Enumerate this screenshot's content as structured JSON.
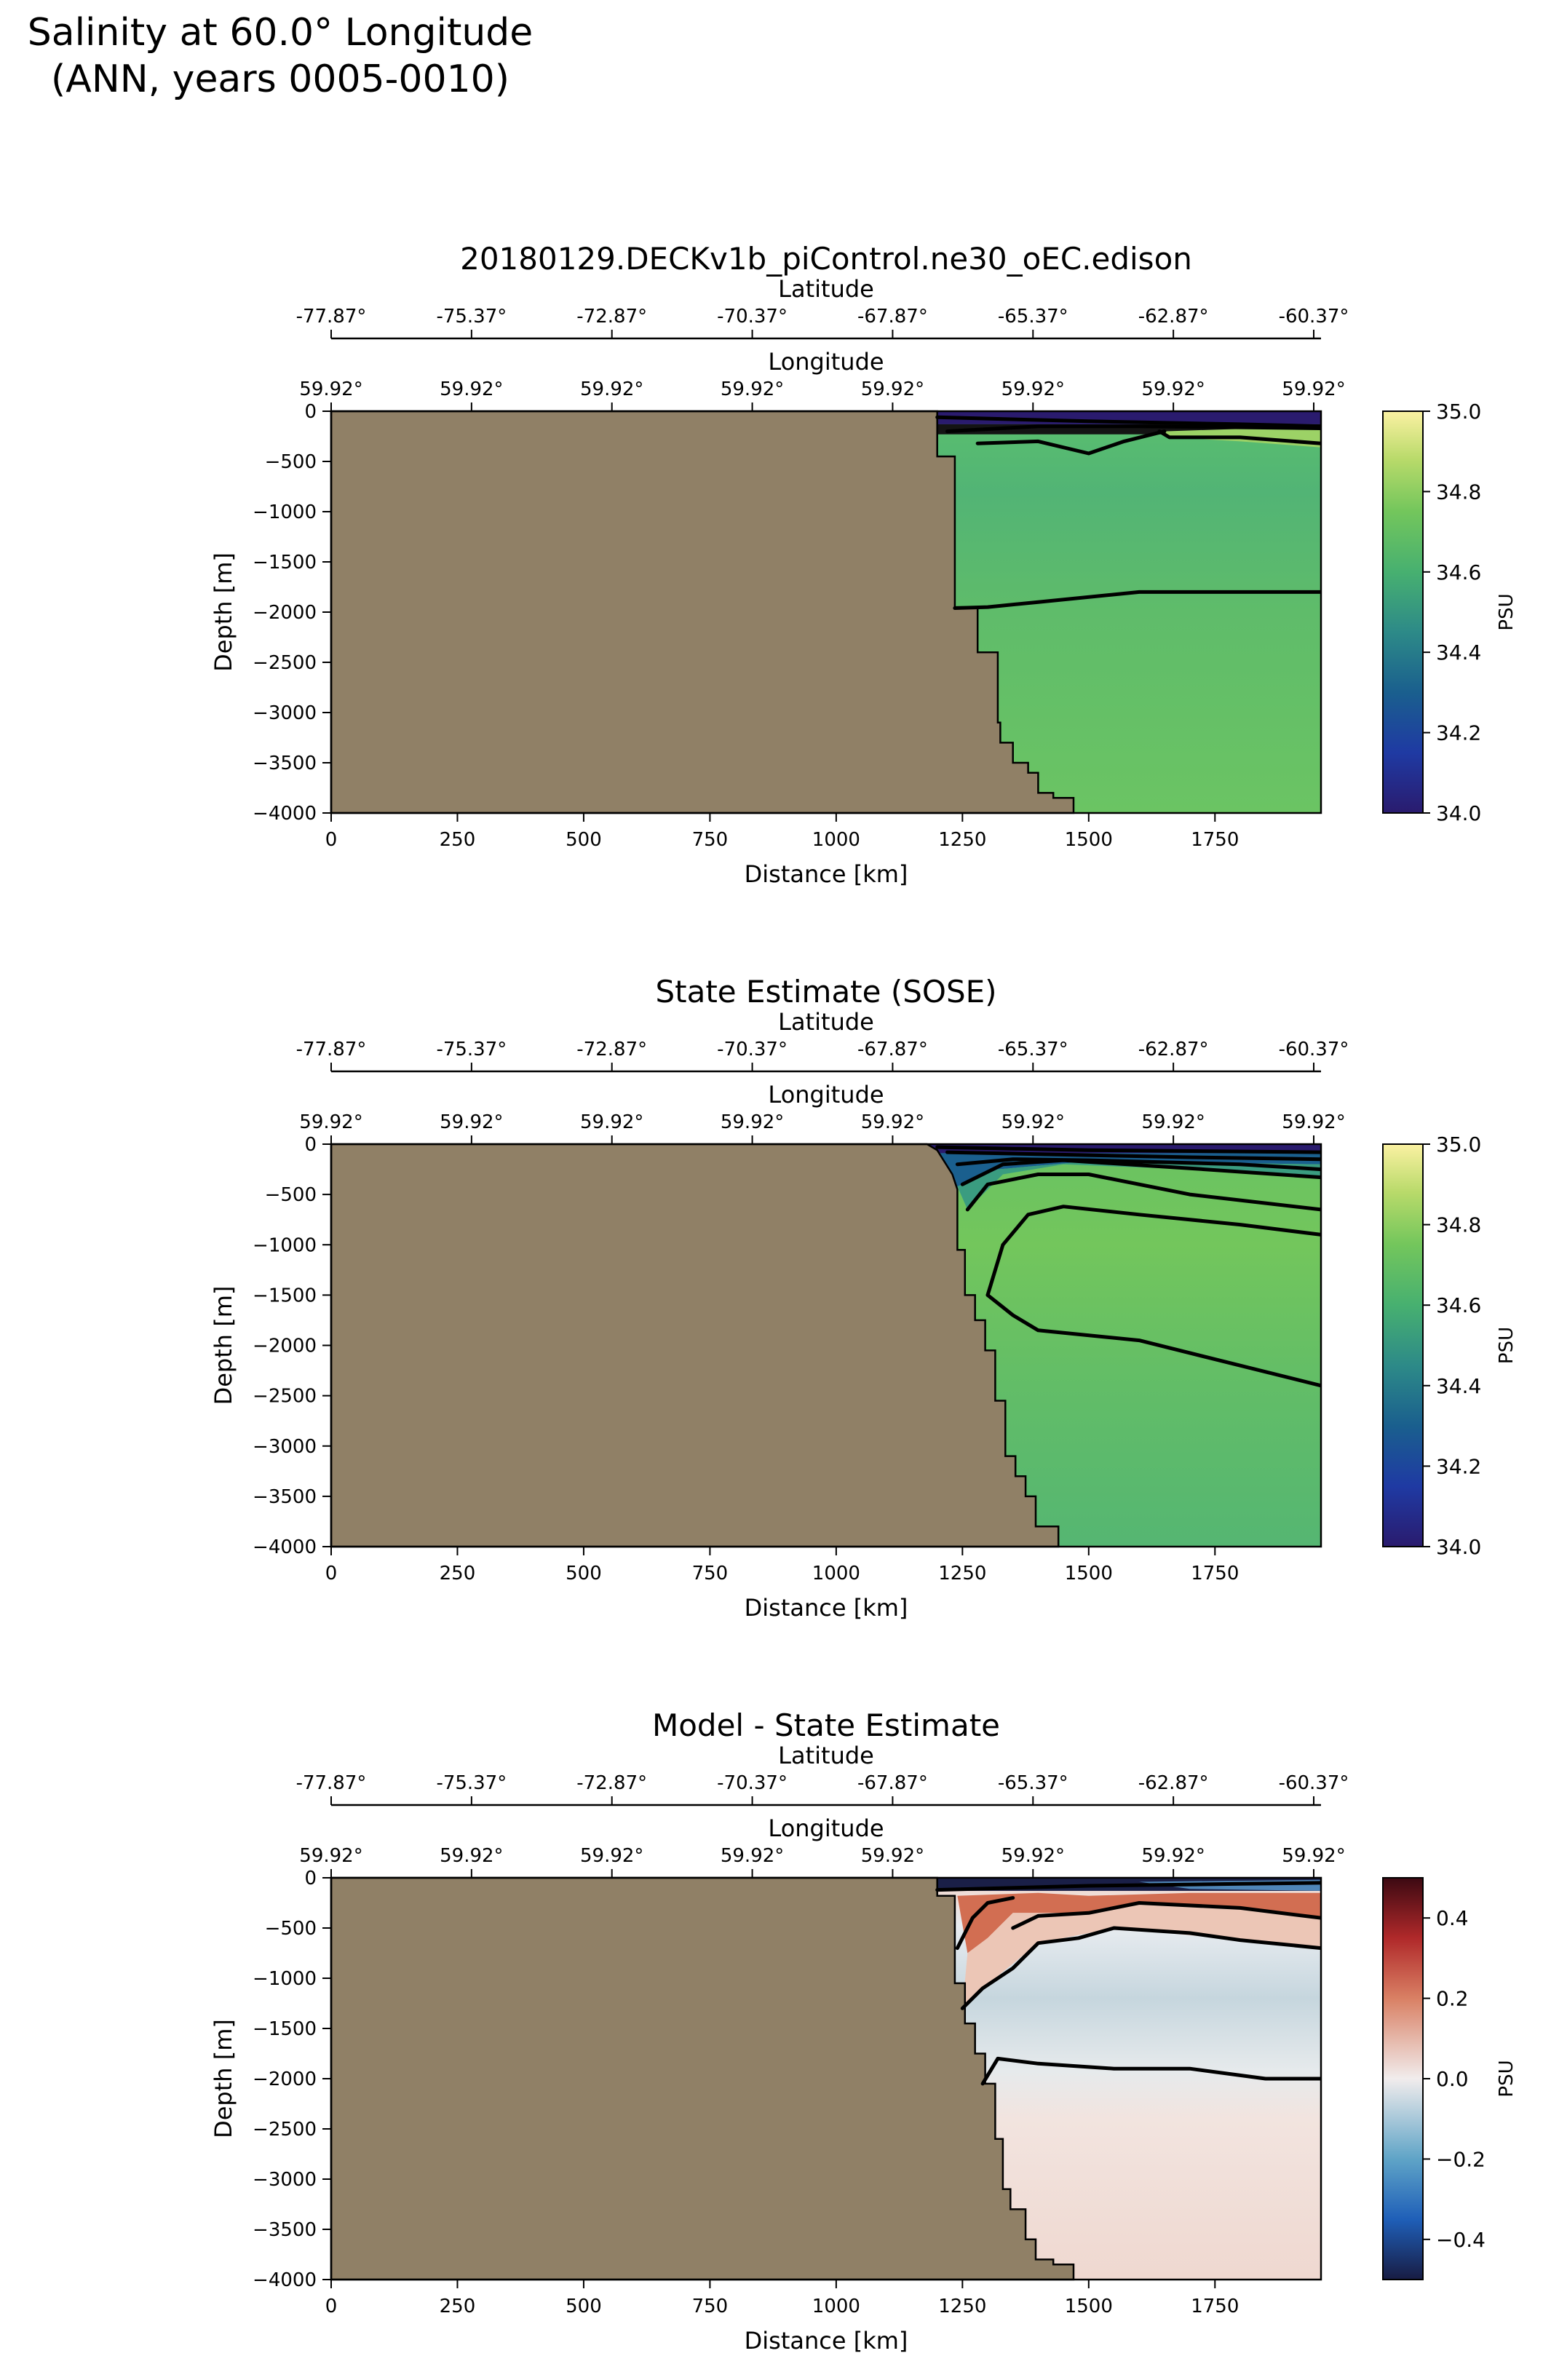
{
  "figure": {
    "suptitle_line1": "Salinity at 60.0° Longitude",
    "suptitle_line2": "(ANN, years 0005-0010)"
  },
  "colors": {
    "land": "#908066",
    "axis": "#000000"
  },
  "chart_data": [
    {
      "type": "heatmap",
      "title": "20180129.DECKv1b_piControl.ne30_oEC.edison",
      "xlabel": "Distance [km]",
      "ylabel": "Depth [m]",
      "xlim": [
        0,
        1960
      ],
      "ylim": [
        -4000,
        0
      ],
      "xticks": [
        0,
        250,
        500,
        750,
        1000,
        1250,
        1500,
        1750
      ],
      "yticks": [
        0,
        -500,
        -1000,
        -1500,
        -2000,
        -2500,
        -3000,
        -3500,
        -4000
      ],
      "lat_label": "Latitude",
      "lat_ticks": [
        "-77.87°",
        "-75.37°",
        "-72.87°",
        "-70.37°",
        "-67.87°",
        "-65.37°",
        "-62.87°",
        "-60.37°"
      ],
      "lon_label": "Longitude",
      "lon_ticks": [
        "59.92°",
        "59.92°",
        "59.92°",
        "59.92°",
        "59.92°",
        "59.92°",
        "59.92°",
        "59.92°"
      ],
      "colorbar": {
        "label": "PSU",
        "range": [
          34.0,
          35.0
        ],
        "ticks": [
          "35.0",
          "34.8",
          "34.6",
          "34.4",
          "34.2",
          "34.0"
        ],
        "colormap": "haline"
      },
      "land_boundary": [
        [
          1200,
          0
        ],
        [
          1200,
          -450
        ],
        [
          1235,
          -450
        ],
        [
          1235,
          -1950
        ],
        [
          1280,
          -1950
        ],
        [
          1280,
          -2400
        ],
        [
          1320,
          -2400
        ],
        [
          1320,
          -3100
        ],
        [
          1325,
          -3100
        ],
        [
          1325,
          -3300
        ],
        [
          1350,
          -3300
        ],
        [
          1350,
          -3500
        ],
        [
          1380,
          -3500
        ],
        [
          1380,
          -3600
        ],
        [
          1400,
          -3600
        ],
        [
          1400,
          -3800
        ],
        [
          1430,
          -3800
        ],
        [
          1430,
          -3850
        ],
        [
          1470,
          -3850
        ],
        [
          1470,
          -4000
        ]
      ],
      "contours": [
        [
          [
            1200,
            -60
          ],
          [
            1500,
            -100
          ],
          [
            1800,
            -130
          ],
          [
            1960,
            -150
          ]
        ],
        [
          [
            1220,
            -200
          ],
          [
            1400,
            -150
          ],
          [
            1600,
            -150
          ],
          [
            1800,
            -160
          ],
          [
            1960,
            -170
          ]
        ],
        [
          [
            1280,
            -320
          ],
          [
            1400,
            -300
          ],
          [
            1500,
            -420
          ],
          [
            1570,
            -300
          ],
          [
            1650,
            -200
          ]
        ],
        [
          [
            1640,
            -200
          ],
          [
            1660,
            -260
          ],
          [
            1800,
            -260
          ],
          [
            1960,
            -320
          ]
        ],
        [
          [
            1235,
            -1960
          ],
          [
            1300,
            -1950
          ],
          [
            1400,
            -1900
          ],
          [
            1600,
            -1800
          ],
          [
            1800,
            -1800
          ],
          [
            1960,
            -1800
          ]
        ]
      ]
    },
    {
      "type": "heatmap",
      "title": "State Estimate (SOSE)",
      "xlabel": "Distance [km]",
      "ylabel": "Depth [m]",
      "xlim": [
        0,
        1960
      ],
      "ylim": [
        -4000,
        0
      ],
      "xticks": [
        0,
        250,
        500,
        750,
        1000,
        1250,
        1500,
        1750
      ],
      "yticks": [
        0,
        -500,
        -1000,
        -1500,
        -2000,
        -2500,
        -3000,
        -3500,
        -4000
      ],
      "lat_label": "Latitude",
      "lat_ticks": [
        "-77.87°",
        "-75.37°",
        "-72.87°",
        "-70.37°",
        "-67.87°",
        "-65.37°",
        "-62.87°",
        "-60.37°"
      ],
      "lon_label": "Longitude",
      "lon_ticks": [
        "59.92°",
        "59.92°",
        "59.92°",
        "59.92°",
        "59.92°",
        "59.92°",
        "59.92°",
        "59.92°"
      ],
      "colorbar": {
        "label": "PSU",
        "range": [
          34.0,
          35.0
        ],
        "ticks": [
          "35.0",
          "34.8",
          "34.6",
          "34.4",
          "34.2",
          "34.0"
        ],
        "colormap": "haline"
      },
      "land_boundary": [
        [
          1180,
          0
        ],
        [
          1200,
          -60
        ],
        [
          1230,
          -300
        ],
        [
          1240,
          -450
        ],
        [
          1240,
          -1050
        ],
        [
          1255,
          -1050
        ],
        [
          1255,
          -1500
        ],
        [
          1275,
          -1500
        ],
        [
          1275,
          -1750
        ],
        [
          1295,
          -1750
        ],
        [
          1295,
          -2050
        ],
        [
          1315,
          -2050
        ],
        [
          1315,
          -2550
        ],
        [
          1335,
          -2550
        ],
        [
          1335,
          -3100
        ],
        [
          1355,
          -3100
        ],
        [
          1355,
          -3300
        ],
        [
          1375,
          -3300
        ],
        [
          1375,
          -3500
        ],
        [
          1395,
          -3500
        ],
        [
          1395,
          -3800
        ],
        [
          1440,
          -3800
        ],
        [
          1440,
          -4000
        ]
      ],
      "contours": [
        [
          [
            1200,
            -30
          ],
          [
            1500,
            -60
          ],
          [
            1960,
            -80
          ]
        ],
        [
          [
            1220,
            -80
          ],
          [
            1400,
            -100
          ],
          [
            1700,
            -130
          ],
          [
            1960,
            -150
          ]
        ],
        [
          [
            1240,
            -200
          ],
          [
            1350,
            -150
          ],
          [
            1500,
            -160
          ],
          [
            1800,
            -200
          ],
          [
            1960,
            -250
          ]
        ],
        [
          [
            1250,
            -400
          ],
          [
            1330,
            -200
          ],
          [
            1450,
            -160
          ],
          [
            1700,
            -240
          ],
          [
            1960,
            -330
          ]
        ],
        [
          [
            1260,
            -650
          ],
          [
            1300,
            -400
          ],
          [
            1400,
            -300
          ],
          [
            1500,
            -300
          ],
          [
            1700,
            -500
          ],
          [
            1960,
            -650
          ]
        ],
        [
          [
            1300,
            -1500
          ],
          [
            1330,
            -1000
          ],
          [
            1380,
            -700
          ],
          [
            1450,
            -620
          ],
          [
            1600,
            -700
          ],
          [
            1800,
            -800
          ],
          [
            1960,
            -900
          ]
        ],
        [
          [
            1300,
            -1500
          ],
          [
            1350,
            -1700
          ],
          [
            1400,
            -1850
          ],
          [
            1600,
            -1950
          ],
          [
            1800,
            -2200
          ],
          [
            1960,
            -2400
          ]
        ]
      ]
    },
    {
      "type": "heatmap",
      "title": "Model - State Estimate",
      "xlabel": "Distance [km]",
      "ylabel": "Depth [m]",
      "xlim": [
        0,
        1960
      ],
      "ylim": [
        -4000,
        0
      ],
      "xticks": [
        0,
        250,
        500,
        750,
        1000,
        1250,
        1500,
        1750
      ],
      "yticks": [
        0,
        -500,
        -1000,
        -1500,
        -2000,
        -2500,
        -3000,
        -3500,
        -4000
      ],
      "lat_label": "Latitude",
      "lat_ticks": [
        "-77.87°",
        "-75.37°",
        "-72.87°",
        "-70.37°",
        "-67.87°",
        "-65.37°",
        "-62.87°",
        "-60.37°"
      ],
      "lon_label": "Longitude",
      "lon_ticks": [
        "59.92°",
        "59.92°",
        "59.92°",
        "59.92°",
        "59.92°",
        "59.92°",
        "59.92°",
        "59.92°"
      ],
      "colorbar": {
        "label": "PSU",
        "range": [
          -0.5,
          0.5
        ],
        "ticks": [
          "0.4",
          "0.2",
          "0.0",
          "−0.2",
          "−0.4"
        ],
        "colormap": "balance"
      },
      "land_boundary": [
        [
          1200,
          0
        ],
        [
          1200,
          -180
        ],
        [
          1235,
          -180
        ],
        [
          1235,
          -1050
        ],
        [
          1255,
          -1050
        ],
        [
          1255,
          -1450
        ],
        [
          1275,
          -1450
        ],
        [
          1275,
          -1750
        ],
        [
          1295,
          -1750
        ],
        [
          1295,
          -2050
        ],
        [
          1315,
          -2050
        ],
        [
          1315,
          -2600
        ],
        [
          1330,
          -2600
        ],
        [
          1330,
          -3100
        ],
        [
          1345,
          -3100
        ],
        [
          1345,
          -3300
        ],
        [
          1375,
          -3300
        ],
        [
          1375,
          -3600
        ],
        [
          1395,
          -3600
        ],
        [
          1395,
          -3800
        ],
        [
          1430,
          -3800
        ],
        [
          1430,
          -3850
        ],
        [
          1470,
          -3850
        ],
        [
          1470,
          -4000
        ]
      ],
      "contours": [
        [
          [
            1200,
            -120
          ],
          [
            1500,
            -80
          ],
          [
            1800,
            -60
          ],
          [
            1960,
            -50
          ]
        ],
        [
          [
            1240,
            -700
          ],
          [
            1270,
            -400
          ],
          [
            1300,
            -250
          ],
          [
            1350,
            -200
          ]
        ],
        [
          [
            1350,
            -500
          ],
          [
            1400,
            -380
          ],
          [
            1500,
            -350
          ],
          [
            1600,
            -250
          ],
          [
            1800,
            -300
          ],
          [
            1960,
            -400
          ]
        ],
        [
          [
            1250,
            -1300
          ],
          [
            1290,
            -1100
          ],
          [
            1350,
            -900
          ],
          [
            1400,
            -650
          ],
          [
            1480,
            -600
          ],
          [
            1550,
            -500
          ],
          [
            1700,
            -550
          ],
          [
            1800,
            -620
          ],
          [
            1960,
            -700
          ]
        ],
        [
          [
            1290,
            -2050
          ],
          [
            1320,
            -1800
          ],
          [
            1400,
            -1850
          ],
          [
            1550,
            -1900
          ],
          [
            1700,
            -1900
          ],
          [
            1850,
            -2000
          ],
          [
            1960,
            -2000
          ]
        ]
      ]
    }
  ]
}
